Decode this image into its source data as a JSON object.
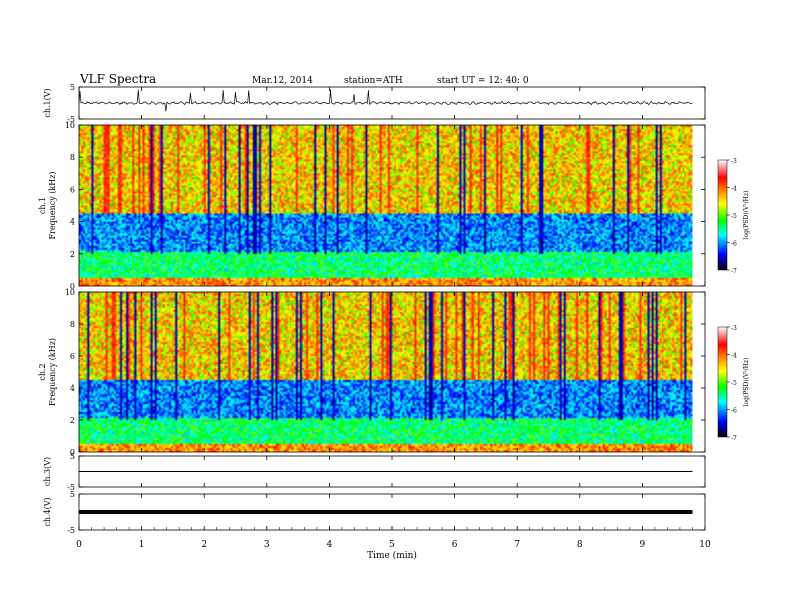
{
  "header": {
    "title": "VLF  Spectra",
    "date": "Mar.12, 2014",
    "station": "station=ATH",
    "start": "start  UT  =    12: 40: 0"
  },
  "chart_data": [
    {
      "type": "line",
      "panel": "ch1-wave",
      "ylabel": "ch.1(V)",
      "yticks": [
        "5",
        "-5"
      ],
      "ylim": [
        -5,
        5
      ],
      "x": [
        0,
        0.5,
        1,
        1.5,
        2,
        2.5,
        3,
        3.5,
        4,
        4.5,
        5,
        5.5,
        6,
        6.5,
        7,
        7.5,
        8,
        8.5,
        9,
        9.5,
        9.8
      ],
      "y": [
        0.3,
        -0.2,
        0.4,
        -0.3,
        0.1,
        0.5,
        -0.4,
        0.2,
        0.6,
        -0.1,
        0.3,
        -0.5,
        0.7,
        0.2,
        -0.3,
        0.4,
        -0.6,
        0.5,
        0.1,
        -0.2,
        0.3
      ]
    },
    {
      "type": "heatmap",
      "panel": "ch1-spectrogram",
      "ylabel": "ch.1\nFrequency  (kHz)",
      "yticks": [
        "0",
        "2",
        "4",
        "6",
        "8",
        "10"
      ],
      "ylim": [
        0,
        10
      ],
      "colorbar": {
        "label": "log(PSD)(V²/Hz)",
        "ticks": [
          "-3",
          "-4",
          "-5",
          "-6",
          "-7"
        ],
        "range": [
          -7,
          -3
        ]
      }
    },
    {
      "type": "heatmap",
      "panel": "ch2-spectrogram",
      "ylabel": "ch.2\nFrequency  (kHz)",
      "yticks": [
        "0",
        "2",
        "4",
        "6",
        "8",
        "10"
      ],
      "ylim": [
        0,
        10
      ],
      "colorbar": {
        "label": "log(PSD)(V²/Hz)",
        "ticks": [
          "-3",
          "-4",
          "-5",
          "-6",
          "-7"
        ],
        "range": [
          -7,
          -3
        ]
      }
    },
    {
      "type": "line",
      "panel": "ch3-wave",
      "ylabel": "ch.3(V)",
      "yticks": [
        "5",
        "-5"
      ],
      "ylim": [
        -5,
        5
      ],
      "x": [
        0,
        9.8
      ],
      "y": [
        0,
        0
      ]
    },
    {
      "type": "line",
      "panel": "ch4-wave",
      "ylabel": "ch.4(V)",
      "yticks": [
        "5",
        "-5"
      ],
      "ylim": [
        -5,
        5
      ],
      "x": [
        0,
        9.8
      ],
      "y": [
        0,
        0
      ]
    }
  ],
  "xaxis": {
    "label": "Time  (min)",
    "ticks": [
      "0",
      "1",
      "2",
      "3",
      "4",
      "5",
      "6",
      "7",
      "8",
      "9",
      "10"
    ],
    "xlim": [
      0,
      10
    ],
    "data_end": 9.8
  },
  "colors": {
    "wave": "#000000",
    "colormap": [
      "#000000",
      "#0000ff",
      "#00ffff",
      "#00ff00",
      "#ffff00",
      "#ff8800",
      "#ff0000",
      "#ffffff"
    ]
  }
}
